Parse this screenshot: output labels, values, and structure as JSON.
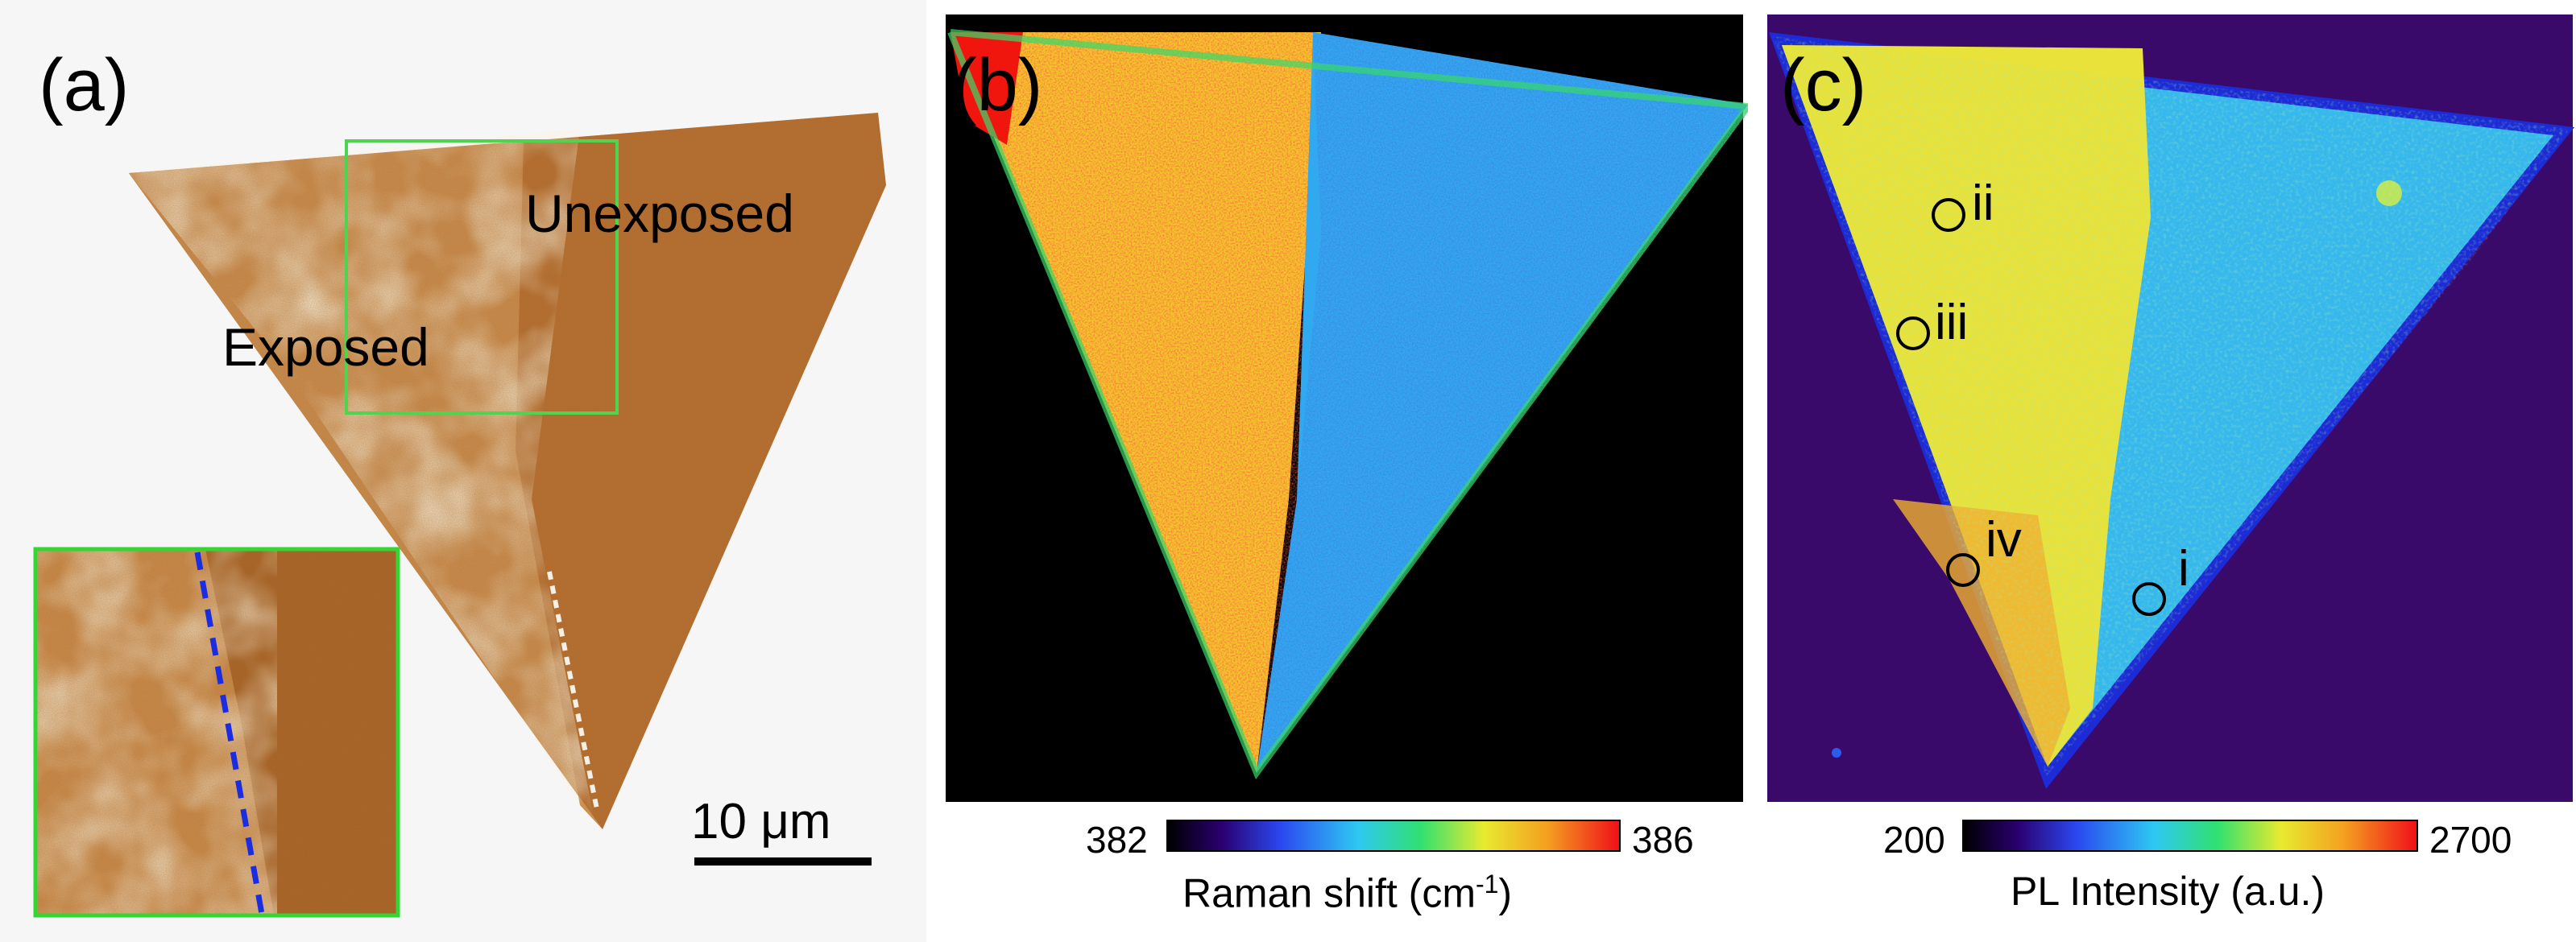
{
  "panel_a": {
    "label": "(a)",
    "region_unexposed": "Unexposed",
    "region_exposed": "Exposed",
    "scale_bar": "10 μm"
  },
  "panel_b": {
    "label": "(b)",
    "colorbar": {
      "min": "382",
      "max": "386",
      "title_main": "Raman shift (cm",
      "title_sup": "-1",
      "title_end": ")"
    }
  },
  "panel_c": {
    "label": "(c)",
    "colorbar": {
      "min": "200",
      "max": "2700",
      "title": "PL Intensity (a.u.)"
    },
    "points": [
      {
        "label": "ii"
      },
      {
        "label": "iii"
      },
      {
        "label": "iv"
      },
      {
        "label": "i"
      }
    ]
  },
  "colors": {
    "afm_light": "#e9c79a",
    "afm_mid": "#c9823f",
    "afm_dark": "#a85a1e",
    "inset_border": "#33d633",
    "dashed_blue": "#1b2de0",
    "map_red": "#f01a10",
    "map_yellow": "#f3e63a",
    "map_blue": "#2aa0f0",
    "pl_bg": "#3a0a6a"
  }
}
